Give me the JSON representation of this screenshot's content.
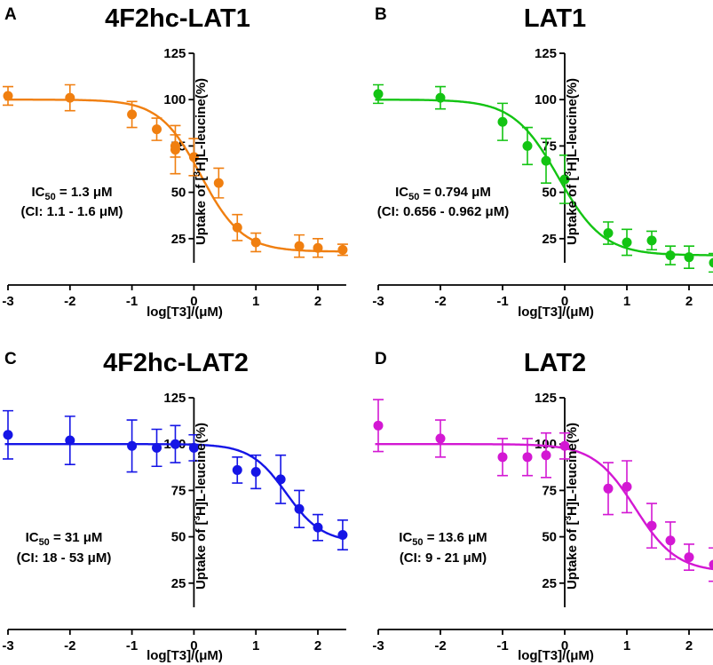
{
  "figure": {
    "panels": [
      {
        "letter": "A",
        "title": "4F2hc-LAT1",
        "color": "#f07f10",
        "ic50_label": "IC",
        "ic50_sub": "50",
        "ic50_value": " = 1.3 μM",
        "ci_text": "(CI: 1.1 - 1.6 μM)"
      },
      {
        "letter": "B",
        "title": "LAT1",
        "color": "#13c413",
        "ic50_label": "IC",
        "ic50_sub": "50",
        "ic50_value": " = 0.794 μM",
        "ci_text": "(CI: 0.656 - 0.962 μM)"
      },
      {
        "letter": "C",
        "title": "4F2hc-LAT2",
        "color": "#1515e6",
        "ic50_label": "IC",
        "ic50_sub": "50",
        "ic50_value": " = 31 μM",
        "ci_text": "(CI: 18 - 53 μM)"
      },
      {
        "letter": "D",
        "title": "LAT2",
        "color": "#d318d3",
        "ic50_label": "IC",
        "ic50_sub": "50",
        "ic50_value": " = 13.6 μM",
        "ci_text": "(CI: 9 - 21 μM)"
      }
    ]
  },
  "chart_data": [
    {
      "type": "scatter",
      "title": "4F2hc-LAT1",
      "panel": "A",
      "xlabel": "log[T3]/(μM)",
      "ylabel_pre": "Uptake of [",
      "ylabel_sup": "3",
      "ylabel_post": "H]L-leucine(%)",
      "xlim": [
        -3.15,
        2.5
      ],
      "ylim": [
        0,
        125
      ],
      "x_ticks": [
        "-3",
        "-2",
        "-1",
        "0",
        "1",
        "2"
      ],
      "y_ticks": [
        "25",
        "50",
        "75",
        "100",
        "125"
      ],
      "fit": {
        "top": 100,
        "bottom": 18,
        "log_ic50": 0.114,
        "hill": -1.3
      },
      "points": [
        {
          "x": -3.0,
          "y": 102,
          "err": 5
        },
        {
          "x": -2.0,
          "y": 101,
          "err": 7
        },
        {
          "x": -1.0,
          "y": 92,
          "err": 7
        },
        {
          "x": -0.6,
          "y": 84,
          "err": 6
        },
        {
          "x": -0.3,
          "y": 73,
          "err": 13
        },
        {
          "x": -0.3,
          "y": 75,
          "err": 6
        },
        {
          "x": 0.0,
          "y": 69,
          "err": 10
        },
        {
          "x": 0.4,
          "y": 55,
          "err": 8
        },
        {
          "x": 0.7,
          "y": 31,
          "err": 7
        },
        {
          "x": 1.0,
          "y": 23,
          "err": 5
        },
        {
          "x": 1.7,
          "y": 21,
          "err": 6
        },
        {
          "x": 2.0,
          "y": 20,
          "err": 5
        },
        {
          "x": 2.4,
          "y": 19,
          "err": 3
        }
      ]
    },
    {
      "type": "scatter",
      "title": "LAT1",
      "panel": "B",
      "xlabel": "log[T3]/(μM)",
      "ylabel_pre": "Uptake of [",
      "ylabel_sup": "3",
      "ylabel_post": "H]L-leucine(%)",
      "xlim": [
        -3.15,
        2.5
      ],
      "ylim": [
        0,
        125
      ],
      "x_ticks": [
        "-3",
        "-2",
        "-1",
        "0",
        "1",
        "2"
      ],
      "y_ticks": [
        "25",
        "50",
        "75",
        "100",
        "125"
      ],
      "fit": {
        "top": 100,
        "bottom": 16,
        "log_ic50": -0.1,
        "hill": -1.2
      },
      "points": [
        {
          "x": -3.0,
          "y": 103,
          "err": 5
        },
        {
          "x": -2.0,
          "y": 101,
          "err": 6
        },
        {
          "x": -1.0,
          "y": 88,
          "err": 10
        },
        {
          "x": -0.6,
          "y": 75,
          "err": 10
        },
        {
          "x": -0.3,
          "y": 67,
          "err": 12
        },
        {
          "x": 0.0,
          "y": 57,
          "err": 13
        },
        {
          "x": 0.7,
          "y": 28,
          "err": 6
        },
        {
          "x": 1.0,
          "y": 23,
          "err": 7
        },
        {
          "x": 1.4,
          "y": 24,
          "err": 5
        },
        {
          "x": 1.7,
          "y": 16,
          "err": 5
        },
        {
          "x": 2.0,
          "y": 15,
          "err": 6
        },
        {
          "x": 2.4,
          "y": 12,
          "err": 5
        }
      ]
    },
    {
      "type": "scatter",
      "title": "4F2hc-LAT2",
      "panel": "C",
      "xlabel": "log[T3]/(μM)",
      "ylabel_pre": "Uptake of [",
      "ylabel_sup": "3",
      "ylabel_post": "H]L-leucine(%)",
      "xlim": [
        -3.15,
        2.5
      ],
      "ylim": [
        0,
        125
      ],
      "x_ticks": [
        "-3",
        "-2",
        "-1",
        "0",
        "1",
        "2"
      ],
      "y_ticks": [
        "25",
        "50",
        "75",
        "100",
        "125"
      ],
      "fit": {
        "top": 100,
        "bottom": 47,
        "log_ic50": 1.49,
        "hill": -1.5
      },
      "points": [
        {
          "x": -3.0,
          "y": 105,
          "err": 13
        },
        {
          "x": -2.0,
          "y": 102,
          "err": 13
        },
        {
          "x": -1.0,
          "y": 99,
          "err": 14
        },
        {
          "x": -0.6,
          "y": 98,
          "err": 10
        },
        {
          "x": -0.3,
          "y": 100,
          "err": 10
        },
        {
          "x": 0.0,
          "y": 98,
          "err": 7
        },
        {
          "x": 0.7,
          "y": 86,
          "err": 7
        },
        {
          "x": 1.0,
          "y": 85,
          "err": 9
        },
        {
          "x": 1.4,
          "y": 81,
          "err": 13
        },
        {
          "x": 1.7,
          "y": 65,
          "err": 10
        },
        {
          "x": 2.0,
          "y": 55,
          "err": 7
        },
        {
          "x": 2.4,
          "y": 51,
          "err": 8
        }
      ]
    },
    {
      "type": "scatter",
      "title": "LAT2",
      "panel": "D",
      "xlabel": "log[T3]/(μM)",
      "ylabel_pre": "Uptake of [",
      "ylabel_sup": "3",
      "ylabel_post": "H]L-leucine(%)",
      "xlim": [
        -3.15,
        2.5
      ],
      "ylim": [
        0,
        125
      ],
      "x_ticks": [
        "-3",
        "-2",
        "-1",
        "0",
        "1",
        "2"
      ],
      "y_ticks": [
        "25",
        "50",
        "75",
        "100",
        "125"
      ],
      "fit": {
        "top": 100,
        "bottom": 31,
        "log_ic50": 1.134,
        "hill": -1.3
      },
      "points": [
        {
          "x": -3.0,
          "y": 110,
          "err": 14
        },
        {
          "x": -2.0,
          "y": 103,
          "err": 10
        },
        {
          "x": -1.0,
          "y": 93,
          "err": 10
        },
        {
          "x": -0.6,
          "y": 93,
          "err": 10
        },
        {
          "x": -0.3,
          "y": 94,
          "err": 12
        },
        {
          "x": 0.0,
          "y": 99,
          "err": 7
        },
        {
          "x": 0.7,
          "y": 76,
          "err": 14
        },
        {
          "x": 1.0,
          "y": 77,
          "err": 14
        },
        {
          "x": 1.4,
          "y": 56,
          "err": 12
        },
        {
          "x": 1.7,
          "y": 48,
          "err": 10
        },
        {
          "x": 2.0,
          "y": 39,
          "err": 7
        },
        {
          "x": 2.4,
          "y": 35,
          "err": 9
        }
      ]
    }
  ]
}
